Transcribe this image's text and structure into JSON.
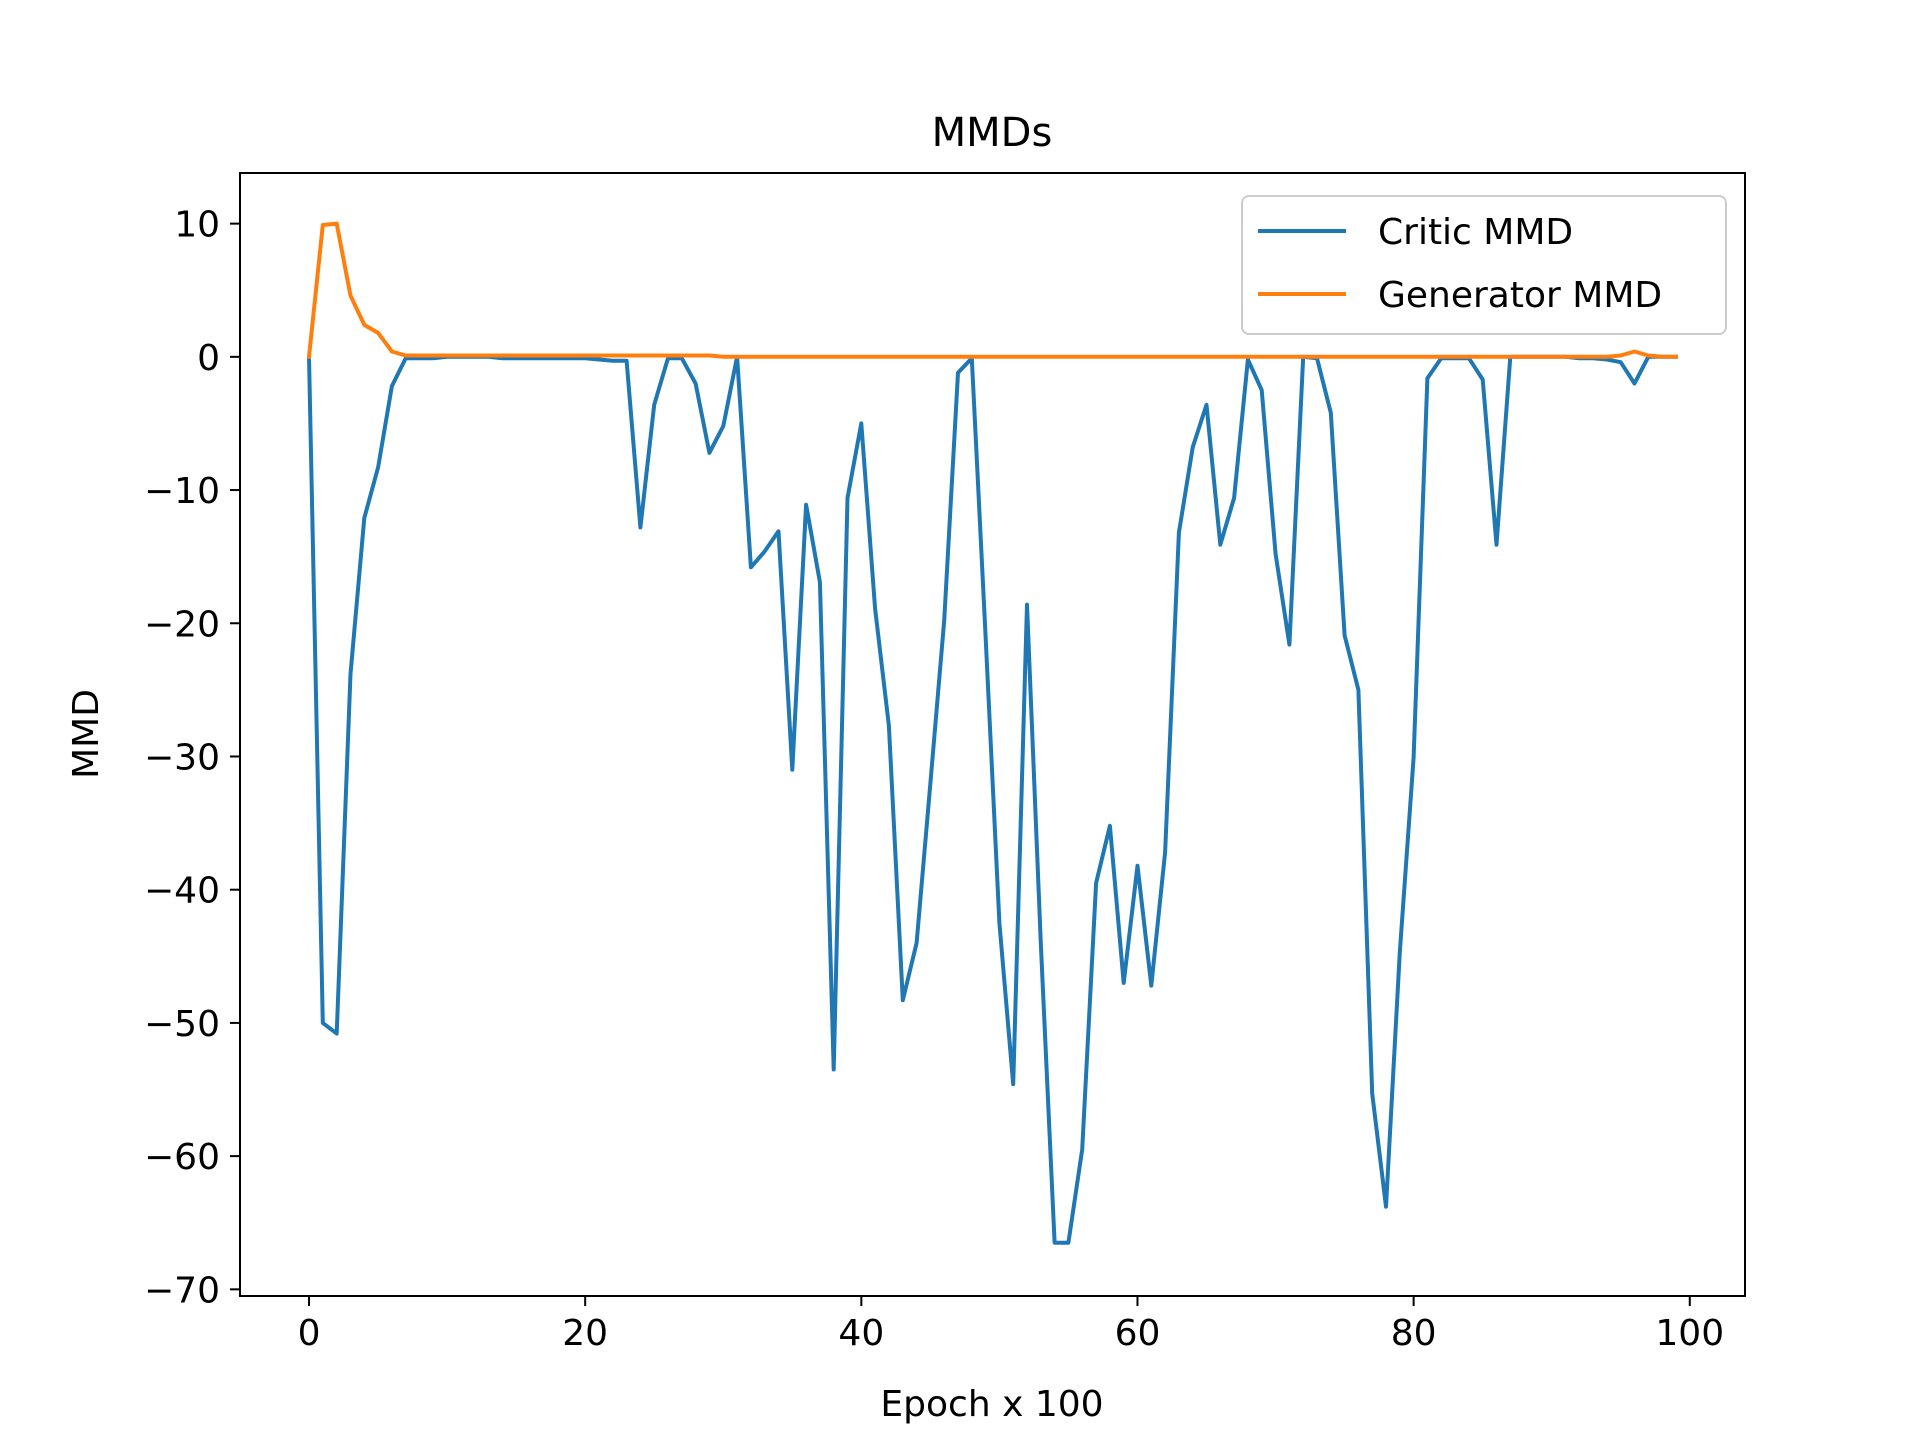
{
  "chart_data": {
    "type": "line",
    "title": "MMDs",
    "xlabel": "Epoch x 100",
    "ylabel": "MMD",
    "xlim": [
      -5,
      104
    ],
    "ylim": [
      -70.5,
      13.8
    ],
    "xticks": [
      0,
      20,
      40,
      60,
      80,
      100
    ],
    "yticks": [
      10,
      0,
      -10,
      -20,
      -30,
      -40,
      -50,
      -60,
      -70
    ],
    "grid": false,
    "legend_position": "top-right",
    "series": [
      {
        "name": "Critic MMD",
        "color": "#1f77b4",
        "x": [
          0,
          1,
          2,
          3,
          4,
          5,
          6,
          7,
          8,
          9,
          10,
          11,
          12,
          13,
          14,
          15,
          16,
          17,
          18,
          19,
          20,
          21,
          22,
          23,
          24,
          25,
          26,
          27,
          28,
          29,
          30,
          31,
          32,
          33,
          34,
          35,
          36,
          37,
          38,
          39,
          40,
          41,
          42,
          43,
          44,
          45,
          46,
          47,
          48,
          49,
          50,
          51,
          52,
          53,
          54,
          55,
          56,
          57,
          58,
          59,
          60,
          61,
          62,
          63,
          64,
          65,
          66,
          67,
          68,
          69,
          70,
          71,
          72,
          73,
          74,
          75,
          76,
          77,
          78,
          79,
          80,
          81,
          82,
          83,
          84,
          85,
          86,
          87,
          88,
          89,
          90,
          91,
          92,
          93,
          94,
          95,
          96,
          97,
          98,
          99
        ],
        "values": [
          0,
          -50,
          -50.8,
          -23.8,
          -12.1,
          -8.3,
          -2.2,
          -0.1,
          -0.1,
          -0.1,
          0,
          0,
          0,
          0,
          -0.1,
          -0.1,
          -0.1,
          -0.1,
          -0.1,
          -0.1,
          -0.1,
          -0.2,
          -0.3,
          -0.3,
          -12.8,
          -3.6,
          -0.1,
          -0.1,
          -2,
          -7.2,
          -5.2,
          0,
          -15.8,
          -14.6,
          -13.1,
          -31,
          -11.1,
          -16.9,
          -53.5,
          -10.6,
          -5,
          -18.9,
          -27.7,
          -48.3,
          -44,
          -32,
          -19.8,
          -1.2,
          -0.1,
          -21,
          -42.5,
          -54.6,
          -18.6,
          -44,
          -66.5,
          -66.5,
          -59.5,
          -39.5,
          -35.2,
          -47,
          -38.2,
          -47.2,
          -37.2,
          -13.2,
          -6.8,
          -3.6,
          -14.1,
          -10.6,
          -0.2,
          -2.5,
          -14.8,
          -21.6,
          0,
          -0.1,
          -4.2,
          -20.9,
          -25,
          -55.3,
          -63.8,
          -44.7,
          -30.1,
          -1.6,
          -0.1,
          -0.1,
          -0.1,
          -1.7,
          -14.1,
          0,
          0,
          0,
          0,
          0,
          -0.1,
          -0.1,
          -0.2,
          -0.4,
          -2,
          0,
          0,
          0
        ]
      },
      {
        "name": "Generator MMD",
        "color": "#ff7f0e",
        "x": [
          0,
          1,
          2,
          3,
          4,
          5,
          6,
          7,
          8,
          9,
          10,
          11,
          12,
          13,
          14,
          15,
          16,
          17,
          18,
          19,
          20,
          21,
          22,
          23,
          24,
          25,
          26,
          27,
          28,
          29,
          30,
          31,
          32,
          33,
          34,
          35,
          36,
          37,
          38,
          39,
          40,
          41,
          42,
          43,
          44,
          45,
          46,
          47,
          48,
          49,
          50,
          51,
          52,
          53,
          54,
          55,
          56,
          57,
          58,
          59,
          60,
          61,
          62,
          63,
          64,
          65,
          66,
          67,
          68,
          69,
          70,
          71,
          72,
          73,
          74,
          75,
          76,
          77,
          78,
          79,
          80,
          81,
          82,
          83,
          84,
          85,
          86,
          87,
          88,
          89,
          90,
          91,
          92,
          93,
          94,
          95,
          96,
          97,
          98,
          99
        ],
        "values": [
          0,
          9.9,
          10,
          4.6,
          2.4,
          1.8,
          0.4,
          0.1,
          0.1,
          0.1,
          0.1,
          0.1,
          0.1,
          0.1,
          0.1,
          0.1,
          0.1,
          0.1,
          0.1,
          0.1,
          0.1,
          0.1,
          0.1,
          0.1,
          0.1,
          0.1,
          0.1,
          0.1,
          0.1,
          0.1,
          0,
          0,
          0,
          0,
          0,
          0,
          0,
          0,
          0,
          0,
          0,
          0,
          0,
          0,
          0,
          0,
          0,
          0,
          0,
          0,
          0,
          0,
          0,
          0,
          0,
          0,
          0,
          0,
          0,
          0,
          0,
          0,
          0,
          0,
          0,
          0,
          0,
          0,
          0,
          0,
          0,
          0,
          0,
          0,
          0,
          0,
          0,
          0,
          0,
          0,
          0,
          0,
          0,
          0,
          0,
          0,
          0,
          0,
          0,
          0,
          0,
          0,
          0,
          0,
          0,
          0.1,
          0.4,
          0.1,
          0,
          0
        ]
      }
    ]
  }
}
